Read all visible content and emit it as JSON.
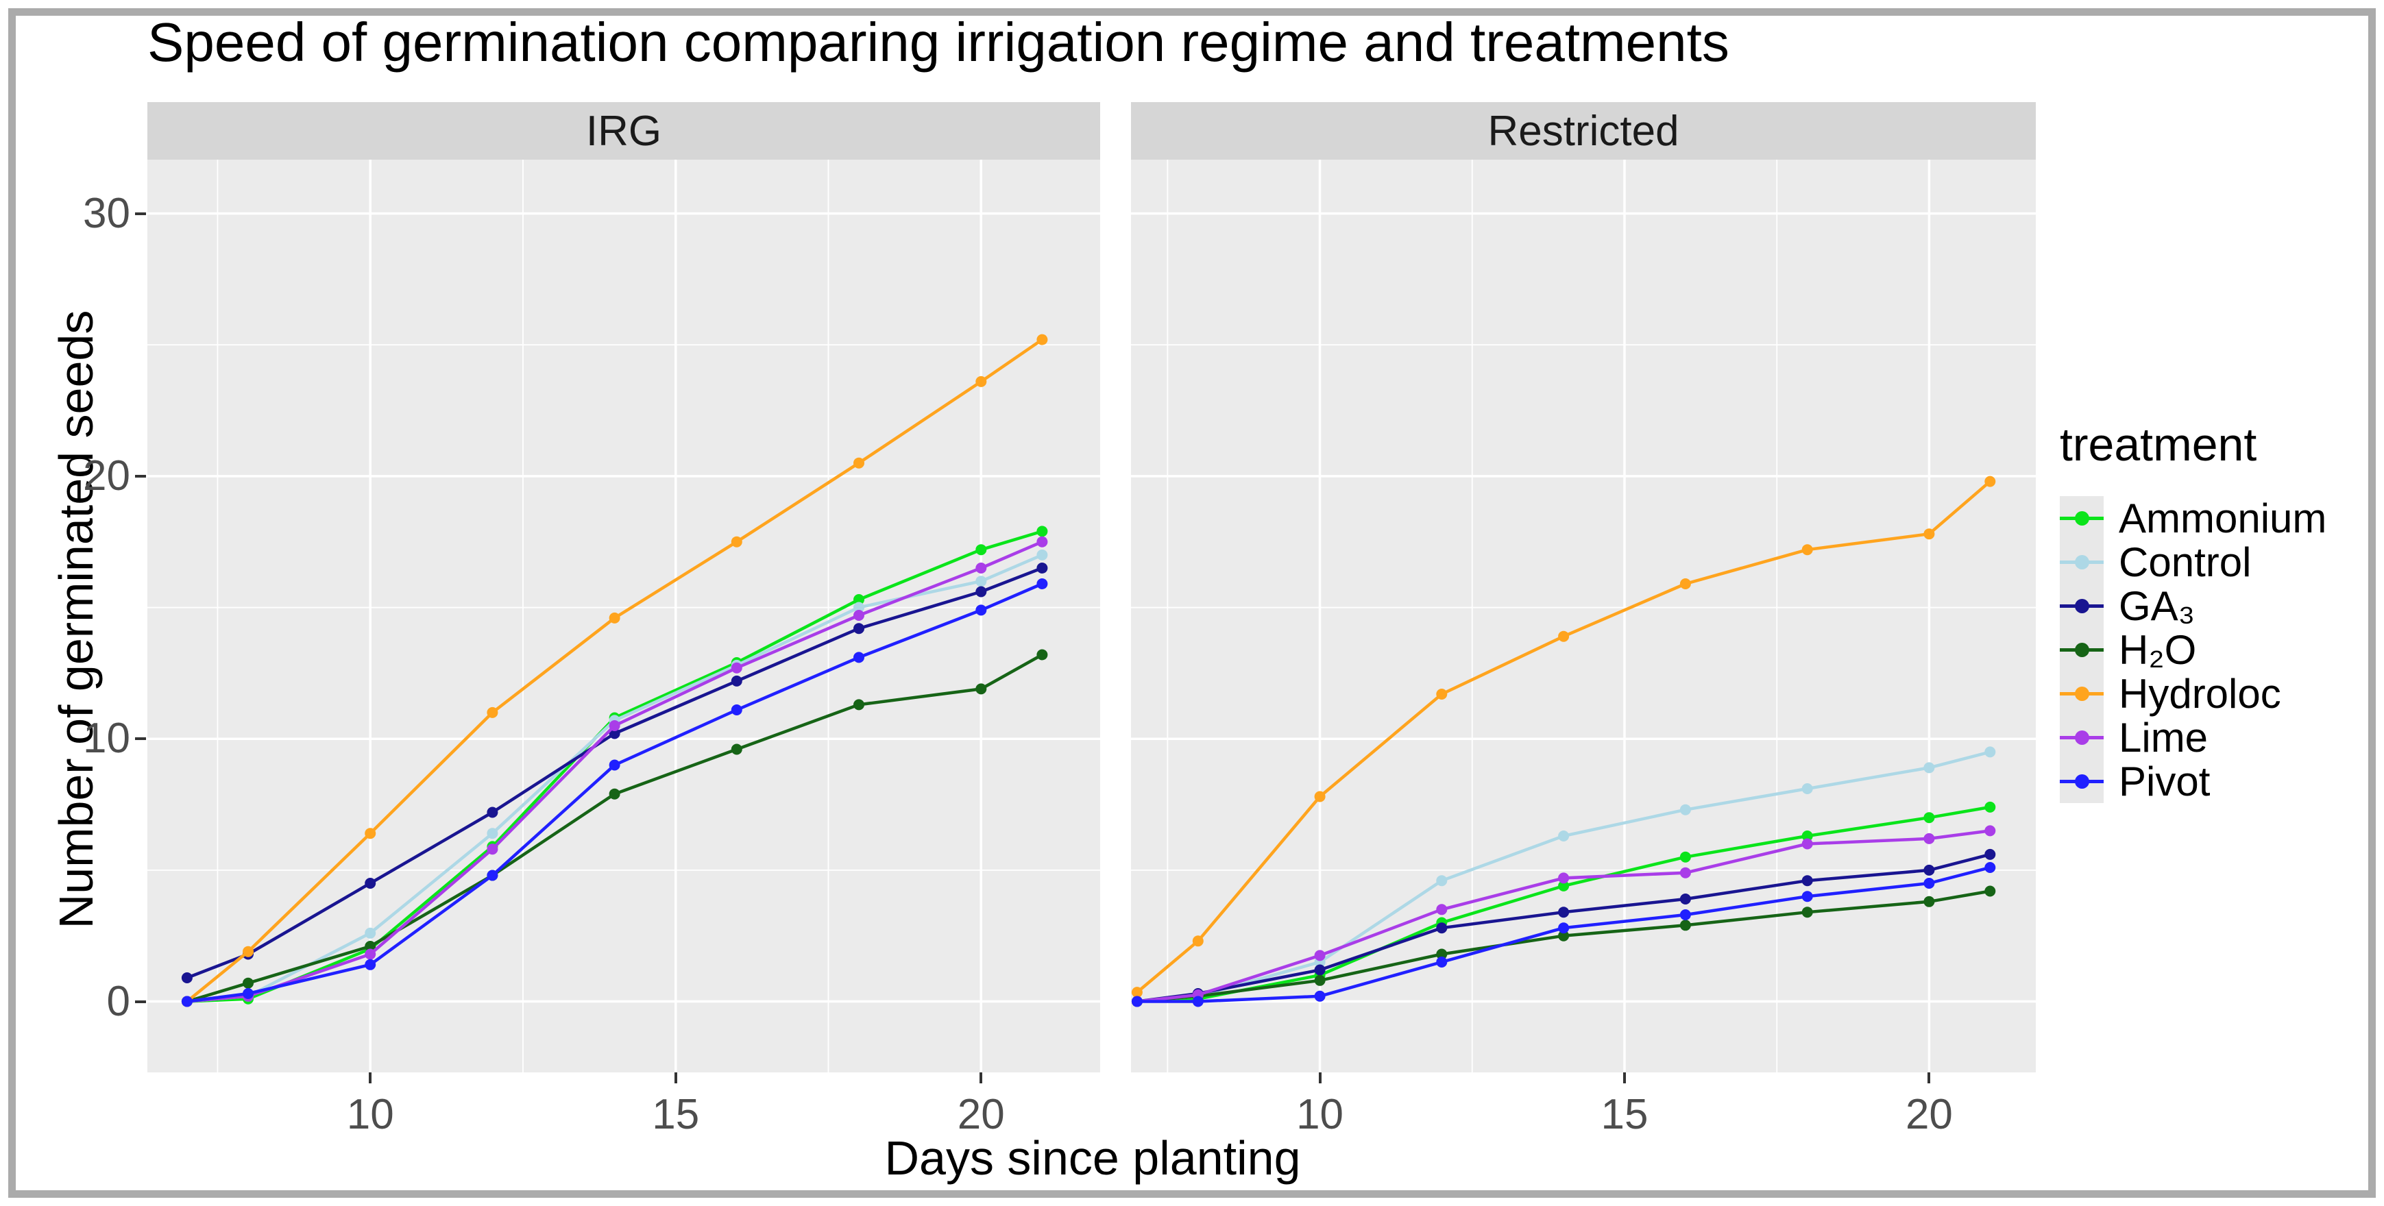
{
  "window": {
    "border_color": "#ABABAB",
    "background": "#FFFFFF"
  },
  "chart_data": {
    "type": "line",
    "title": "Speed of germination comparing irrigation regime and treatments",
    "xlabel": "Days since planting",
    "ylabel": "Number of germinated seeds",
    "x_ticks": [
      10,
      15,
      20
    ],
    "x_minor_ticks": [
      7.5,
      12.5,
      17.5
    ],
    "y_ticks": [
      0,
      10,
      20,
      30
    ],
    "y_minor_ticks": [
      5,
      15,
      25
    ],
    "y_range": [
      -2.7,
      32.05
    ],
    "grid": "on",
    "legend_position": "right",
    "panel_bg": "#EBEBEB",
    "strip_bg": "#D6D6D6",
    "grid_color": "#FFFFFF",
    "tick_label_color": "#4D4D4D",
    "x": [
      7,
      8,
      10,
      12,
      14,
      16,
      18,
      20,
      21
    ],
    "facets": [
      {
        "label": "IRG",
        "x_range": [
          6.35,
          21.95
        ],
        "series": [
          {
            "name": "Ammonium",
            "color": "#0AE41A",
            "values": [
              0,
              0.1,
              2.0,
              5.9,
              10.8,
              12.9,
              15.3,
              17.2,
              17.9
            ]
          },
          {
            "name": "Control",
            "color": "#ADD8E6",
            "values": [
              0,
              0.2,
              2.6,
              6.4,
              10.7,
              12.8,
              15.0,
              16.0,
              17.0
            ]
          },
          {
            "name": "GA₃",
            "color": "#191591",
            "values": [
              0.9,
              1.8,
              4.5,
              7.2,
              10.2,
              12.2,
              14.2,
              15.6,
              16.5
            ]
          },
          {
            "name": "H₂O",
            "color": "#166416",
            "values": [
              0,
              0.7,
              2.1,
              4.8,
              7.9,
              9.6,
              11.3,
              11.9,
              13.2
            ]
          },
          {
            "name": "Hydroloc",
            "color": "#FFA41E",
            "values": [
              0,
              1.9,
              6.4,
              11.0,
              14.6,
              17.5,
              20.5,
              23.6,
              25.2
            ]
          },
          {
            "name": "Lime",
            "color": "#A93DE8",
            "values": [
              0,
              0.2,
              1.8,
              5.8,
              10.5,
              12.7,
              14.7,
              16.5,
              17.5
            ]
          },
          {
            "name": "Pivot",
            "color": "#2020FF",
            "values": [
              0,
              0.3,
              1.4,
              4.8,
              9.0,
              11.1,
              13.1,
              14.9,
              15.9
            ]
          }
        ]
      },
      {
        "label": "Restricted",
        "x_range": [
          6.9,
          21.75
        ],
        "series": [
          {
            "name": "Ammonium",
            "color": "#0AE41A",
            "values": [
              0,
              0.1,
              1.0,
              3.0,
              4.4,
              5.5,
              6.3,
              7.0,
              7.4
            ]
          },
          {
            "name": "Control",
            "color": "#ADD8E6",
            "values": [
              0,
              0.2,
              1.5,
              4.6,
              6.3,
              7.3,
              8.1,
              8.9,
              9.5
            ]
          },
          {
            "name": "GA₃",
            "color": "#191591",
            "values": [
              0,
              0.3,
              1.2,
              2.8,
              3.4,
              3.9,
              4.6,
              5.0,
              5.6
            ]
          },
          {
            "name": "H₂O",
            "color": "#166416",
            "values": [
              0,
              0.2,
              0.8,
              1.8,
              2.5,
              2.9,
              3.4,
              3.8,
              4.2
            ]
          },
          {
            "name": "Hydroloc",
            "color": "#FFA41E",
            "values": [
              0.35,
              2.3,
              7.8,
              11.7,
              13.9,
              15.9,
              17.2,
              17.8,
              19.8
            ]
          },
          {
            "name": "Lime",
            "color": "#A93DE8",
            "values": [
              0,
              0.25,
              1.75,
              3.5,
              4.7,
              4.9,
              6.0,
              6.2,
              6.5
            ]
          },
          {
            "name": "Pivot",
            "color": "#2020FF",
            "values": [
              0,
              0,
              0.2,
              1.5,
              2.8,
              3.3,
              4.0,
              4.5,
              5.1
            ]
          }
        ]
      }
    ],
    "legend": {
      "title": "treatment",
      "entries": [
        {
          "label": "Ammonium",
          "color": "#0AE41A"
        },
        {
          "label": "Control",
          "color": "#ADD8E6"
        },
        {
          "label": "GA₃",
          "color": "#191591"
        },
        {
          "label": "H₂O",
          "color": "#166416"
        },
        {
          "label": "Hydroloc",
          "color": "#FFA41E"
        },
        {
          "label": "Lime",
          "color": "#A93DE8"
        },
        {
          "label": "Pivot",
          "color": "#2020FF"
        }
      ]
    }
  }
}
